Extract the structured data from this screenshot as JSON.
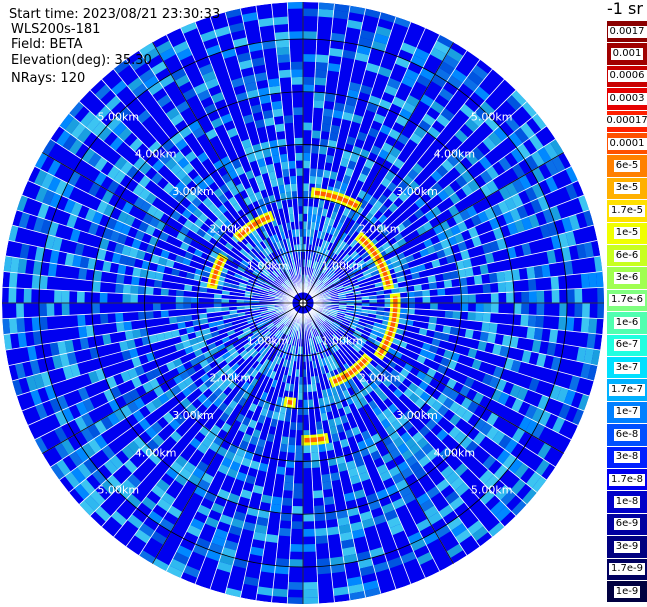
{
  "chart_data": {
    "type": "heatmap",
    "subtype": "polar-ppi-scan",
    "header": {
      "start_time": "Start time: 2023/08/21 23:30:33",
      "instrument": "WLS200s-181",
      "field": "Field: BETA",
      "elevation": "Elevation(deg): 35.30",
      "nrays": "NRays: 120"
    },
    "nrays": 120,
    "max_range_km": 5.7,
    "range_rings_km": [
      1,
      2,
      3,
      4,
      5
    ],
    "ring_labels": [
      "1.00km",
      "2.00km",
      "3.00km",
      "4.00km",
      "5.00km"
    ],
    "grid_line_angles_deg": [
      0,
      30,
      60,
      90,
      120,
      150
    ],
    "colorbar": {
      "unit_label": "-1 sr",
      "levels": [
        "0.0017",
        "0.001",
        "0.0006",
        "0.0003",
        "0.00017",
        "0.0001",
        "6e-5",
        "3e-5",
        "1.7e-5",
        "1e-5",
        "6e-6",
        "3e-6",
        "1.7e-6",
        "1e-6",
        "6e-7",
        "3e-7",
        "1.7e-7",
        "1e-7",
        "6e-8",
        "3e-8",
        "1.7e-8",
        "1e-8",
        "6e-9",
        "3e-9",
        "1.7e-9",
        "1e-9"
      ],
      "colors": [
        "#8b0000",
        "#a00000",
        "#c80000",
        "#e60000",
        "#ff2000",
        "#ff5000",
        "#ff8000",
        "#ffb000",
        "#ffe000",
        "#f0ff00",
        "#c8ff20",
        "#a0ff50",
        "#80ff80",
        "#50ffb0",
        "#20ffe0",
        "#00e0ff",
        "#00b0ff",
        "#0080ff",
        "#0050ff",
        "#0020ff",
        "#0000f0",
        "#0000c8",
        "#0000a0",
        "#000080",
        "#000060",
        "#000040"
      ]
    },
    "background_level": "1.7e-8",
    "feature_arcs": [
      {
        "range_km": 1.75,
        "az_start_deg": -80,
        "az_end_deg": -60,
        "level": "1e-5"
      },
      {
        "range_km": 1.75,
        "az_start_deg": -45,
        "az_end_deg": -20,
        "level": "1e-5"
      },
      {
        "range_km": 2.1,
        "az_start_deg": 5,
        "az_end_deg": 30,
        "level": "1e-5"
      },
      {
        "range_km": 1.65,
        "az_start_deg": 40,
        "az_end_deg": 80,
        "level": "1e-5"
      },
      {
        "range_km": 1.75,
        "az_start_deg": 85,
        "az_end_deg": 125,
        "level": "1e-5"
      },
      {
        "range_km": 1.6,
        "az_start_deg": 130,
        "az_end_deg": 160,
        "level": "1e-5"
      },
      {
        "range_km": 2.6,
        "az_start_deg": 170,
        "az_end_deg": 180,
        "level": "1e-5"
      },
      {
        "range_km": 1.9,
        "az_start_deg": 185,
        "az_end_deg": 190,
        "level": "1e-5"
      }
    ]
  }
}
